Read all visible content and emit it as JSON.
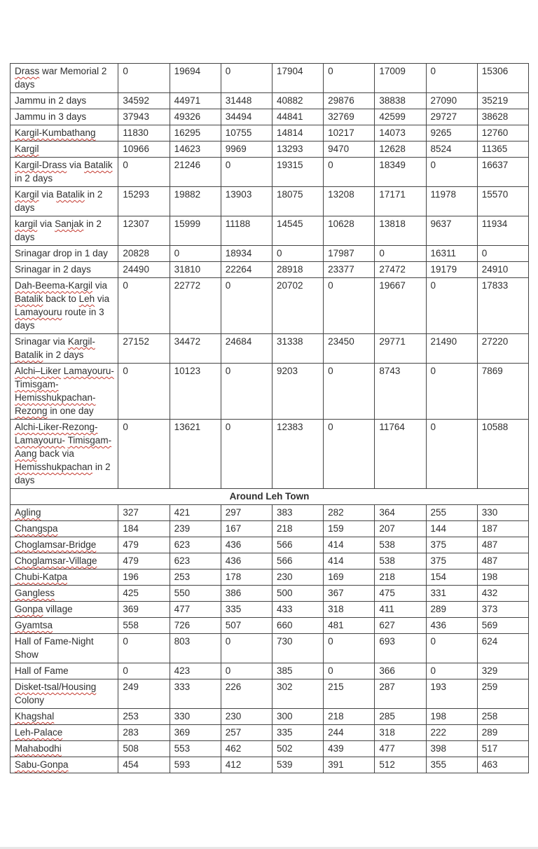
{
  "colors": {
    "page_background": "#ffffff",
    "table_border": "#454545",
    "text": "#2e2e2e",
    "spellcheck_underline": "#c4392f",
    "bottom_edge_line": "#e7e7e7"
  },
  "table": {
    "columns": 9,
    "section_header": "Around Leh Town",
    "rows_top": [
      {
        "name": "Drass war Memorial 2 days",
        "sp": [
          "Drass"
        ],
        "values": [
          0,
          19694,
          0,
          17904,
          0,
          17009,
          0,
          15306
        ]
      },
      {
        "name": "Jammu in 2 days",
        "sp": [],
        "values": [
          34592,
          44971,
          31448,
          40882,
          29876,
          38838,
          27090,
          35219
        ]
      },
      {
        "name": "Jammu in 3 days",
        "sp": [],
        "values": [
          37943,
          49326,
          34494,
          44841,
          32769,
          42599,
          29727,
          38628
        ]
      },
      {
        "name": "Kargil-Kumbathang",
        "sp": [
          "Kargil-Kumbathang"
        ],
        "values": [
          11830,
          16295,
          10755,
          14814,
          10217,
          14073,
          9265,
          12760
        ]
      },
      {
        "name": "Kargil",
        "sp": [
          "Kargil"
        ],
        "values": [
          10966,
          14623,
          9969,
          13293,
          9470,
          12628,
          8524,
          11365
        ]
      },
      {
        "name": "Kargil-Drass via Batalik in 2 days",
        "sp": [
          "Kargil-Drass",
          "Batalik"
        ],
        "values": [
          0,
          21246,
          0,
          19315,
          0,
          18349,
          0,
          16637
        ]
      },
      {
        "name": "Kargil via Batalik in 2 days",
        "sp": [
          "Kargil",
          "Batalik"
        ],
        "values": [
          15293,
          19882,
          13903,
          18075,
          13208,
          17171,
          11978,
          15570
        ]
      },
      {
        "name": "kargil via Sanjak in 2 days",
        "sp": [
          "kargil",
          "Sanjak"
        ],
        "values": [
          12307,
          15999,
          11188,
          14545,
          10628,
          13818,
          9637,
          11934
        ]
      },
      {
        "name": "Srinagar drop in 1 day",
        "sp": [],
        "values": [
          20828,
          0,
          18934,
          0,
          17987,
          0,
          16311,
          0
        ]
      },
      {
        "name": "Srinagar in 2 days",
        "sp": [],
        "values": [
          24490,
          31810,
          22264,
          28918,
          23377,
          27472,
          19179,
          24910
        ]
      },
      {
        "name": "Dah-Beema-Kargil via Batalik back to Leh via Lamayouru route in 3 days",
        "sp": [
          "Dah-Beema-Kargil",
          "Batalik",
          "Leh",
          "Lamayouru"
        ],
        "values": [
          0,
          22772,
          0,
          20702,
          0,
          19667,
          0,
          17833
        ]
      },
      {
        "name": "Srinagar via Kargil-Batalik in 2 days",
        "sp": [
          "Kargil-Batalik"
        ],
        "values": [
          27152,
          34472,
          24684,
          31338,
          23450,
          29771,
          21490,
          27220
        ]
      },
      {
        "name": "Alchi–Liker Lamayouru- Timisgam- Hemisshukpachan- Rezong in one day",
        "sp": [
          "Alchi–Liker",
          "Lamayouru-",
          "Timisgam-",
          "Hemisshukpachan-",
          "Rezong"
        ],
        "values": [
          0,
          10123,
          0,
          9203,
          0,
          8743,
          0,
          7869
        ]
      },
      {
        "name": "Alchi-Liker-Rezong- Lamayouru- Timisgam-Aang back via Hemisshukpachan in 2 days",
        "sp": [
          "Alchi-Liker-Rezong-",
          "Lamayouru-",
          "Timisgam-Aang",
          "Hemisshukpachan"
        ],
        "values": [
          0,
          13621,
          0,
          12383,
          0,
          11764,
          0,
          10588
        ]
      }
    ],
    "rows_leh": [
      {
        "name": "Agling",
        "sp": [
          "Agling"
        ],
        "values": [
          327,
          421,
          297,
          383,
          282,
          364,
          255,
          330
        ]
      },
      {
        "name": "Changspa",
        "sp": [
          "Changspa"
        ],
        "values": [
          184,
          239,
          167,
          218,
          159,
          207,
          144,
          187
        ]
      },
      {
        "name": "Choglamsar-Bridge",
        "sp": [
          "Choglamsar-Bridge"
        ],
        "values": [
          479,
          623,
          436,
          566,
          414,
          538,
          375,
          487
        ]
      },
      {
        "name": "Choglamsar-Village",
        "sp": [
          "Choglamsar-Village"
        ],
        "values": [
          479,
          623,
          436,
          566,
          414,
          538,
          375,
          487
        ]
      },
      {
        "name": "Chubi-Katpa",
        "sp": [
          "Chubi-Katpa"
        ],
        "values": [
          196,
          253,
          178,
          230,
          169,
          218,
          154,
          198
        ]
      },
      {
        "name": "Gangless",
        "sp": [
          "Gangless"
        ],
        "values": [
          425,
          550,
          386,
          500,
          367,
          475,
          331,
          432
        ]
      },
      {
        "name": "Gonpa village",
        "sp": [
          "Gonpa"
        ],
        "values": [
          369,
          477,
          335,
          433,
          318,
          411,
          289,
          373
        ]
      },
      {
        "name": "Gyamtsa",
        "sp": [
          "Gyamtsa"
        ],
        "values": [
          558,
          726,
          507,
          660,
          481,
          627,
          436,
          569
        ]
      },
      {
        "name": "Hall of Fame-Night Show",
        "sp": [],
        "values": [
          0,
          803,
          0,
          730,
          0,
          693,
          0,
          624
        ]
      },
      {
        "name": "Hall of Fame",
        "sp": [],
        "values": [
          0,
          423,
          0,
          385,
          0,
          366,
          0,
          329
        ]
      },
      {
        "name": "Disket-tsal/Housing Colony",
        "sp": [
          "Disket-tsal/Housing"
        ],
        "values": [
          249,
          333,
          226,
          302,
          215,
          287,
          193,
          259
        ]
      },
      {
        "name": "Khagshal",
        "sp": [
          "Khagshal"
        ],
        "values": [
          253,
          330,
          230,
          300,
          218,
          285,
          198,
          258
        ]
      },
      {
        "name": "Leh-Palace",
        "sp": [
          "Leh-Palace"
        ],
        "values": [
          283,
          369,
          257,
          335,
          244,
          318,
          222,
          289
        ]
      },
      {
        "name": "Mahabodhi",
        "sp": [
          "Mahabodhi"
        ],
        "values": [
          508,
          553,
          462,
          502,
          439,
          477,
          398,
          517
        ]
      },
      {
        "name": "Sabu-Gonpa",
        "sp": [
          "Sabu-Gonpa"
        ],
        "values": [
          454,
          593,
          412,
          539,
          391,
          512,
          355,
          463
        ]
      }
    ]
  }
}
